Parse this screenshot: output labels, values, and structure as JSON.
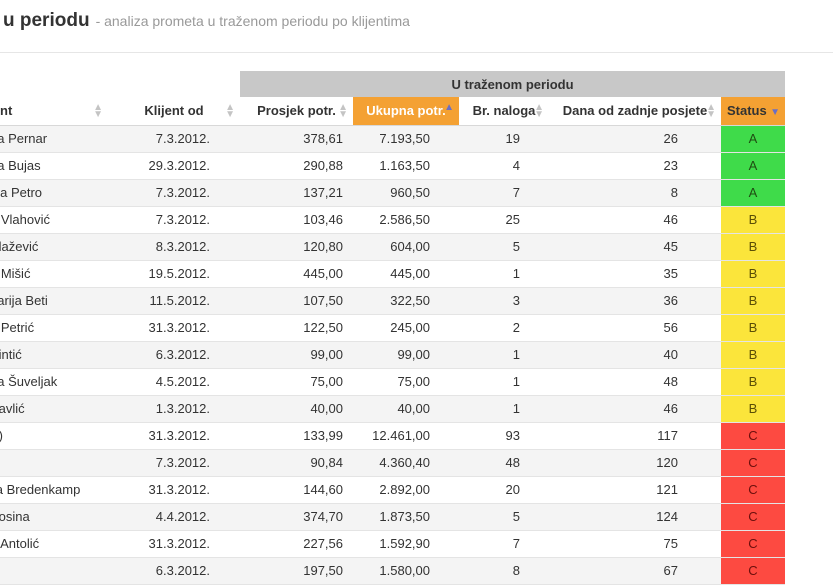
{
  "header": {
    "title": "u periodu",
    "subtitle": "- analiza prometa u traženom periodu po klijentima"
  },
  "table": {
    "group_header": "U traženom periodu",
    "columns": {
      "klijent": "nt",
      "klijent_od": "Klijent od",
      "prosjek": "Prosjek potr.",
      "ukupna": "Ukupna potr.",
      "nalozi": "Br. naloga",
      "dana": "Dana od zadnje posjete",
      "status": "Status"
    },
    "sorted_column": "ukupna",
    "rows": [
      {
        "name": "na Pernar",
        "since": "7.3.2012.",
        "avg": "378,61",
        "total": "7.193,50",
        "orders": "19",
        "days": "26",
        "status": "A"
      },
      {
        "name": "na Bujas",
        "since": "29.3.2012.",
        "avg": "290,88",
        "total": "1.163,50",
        "orders": "4",
        "days": "23",
        "status": "A"
      },
      {
        "name": "ina Petro",
        "since": "7.3.2012.",
        "avg": "137,21",
        "total": "960,50",
        "orders": "7",
        "days": "8",
        "status": "A"
      },
      {
        "name": "a Vlahović",
        "since": "7.3.2012.",
        "avg": "103,46",
        "total": "2.586,50",
        "orders": "25",
        "days": "46",
        "status": "B"
      },
      {
        "name": "Blažević",
        "since": "8.3.2012.",
        "avg": "120,80",
        "total": "604,00",
        "orders": "5",
        "days": "45",
        "status": "B"
      },
      {
        "name": "a Mišić",
        "since": "19.5.2012.",
        "avg": "445,00",
        "total": "445,00",
        "orders": "1",
        "days": "35",
        "status": "B"
      },
      {
        "name": "narija Beti",
        "since": "11.5.2012.",
        "avg": "107,50",
        "total": "322,50",
        "orders": "3",
        "days": "36",
        "status": "B"
      },
      {
        "name": "a Petrić",
        "since": "31.3.2012.",
        "avg": "122,50",
        "total": "245,00",
        "orders": "2",
        "days": "56",
        "status": "B"
      },
      {
        "name": "Pintić",
        "since": "6.3.2012.",
        "avg": "99,00",
        "total": "99,00",
        "orders": "1",
        "days": "40",
        "status": "B"
      },
      {
        "name": "ea Šuveljak",
        "since": "4.5.2012.",
        "avg": "75,00",
        "total": "75,00",
        "orders": "1",
        "days": "48",
        "status": "B"
      },
      {
        "name": "Pavlić",
        "since": "1.3.2012.",
        "avg": "40,00",
        "total": "40,00",
        "orders": "1",
        "days": "46",
        "status": "B"
      },
      {
        "name": "K)",
        "since": "31.3.2012.",
        "avg": "133,99",
        "total": "12.461,00",
        "orders": "93",
        "days": "117",
        "status": "C"
      },
      {
        "name": "",
        "since": "7.3.2012.",
        "avg": "90,84",
        "total": "4.360,40",
        "orders": "48",
        "days": "120",
        "status": "C"
      },
      {
        "name": "ija Bredenkamp",
        "since": "31.3.2012.",
        "avg": "144,60",
        "total": "2.892,00",
        "orders": "20",
        "days": "121",
        "status": "C"
      },
      {
        "name": "Kosina",
        "since": "4.4.2012.",
        "avg": "374,70",
        "total": "1.873,50",
        "orders": "5",
        "days": "124",
        "status": "C"
      },
      {
        "name": "a Antolić",
        "since": "31.3.2012.",
        "avg": "227,56",
        "total": "1.592,90",
        "orders": "7",
        "days": "75",
        "status": "C"
      },
      {
        "name": "",
        "since": "6.3.2012.",
        "avg": "197,50",
        "total": "1.580,00",
        "orders": "8",
        "days": "67",
        "status": "C"
      }
    ]
  },
  "colors": {
    "status_A": "#3fdb4a",
    "status_B": "#fbe53b",
    "status_C": "#fd4a41",
    "sorted_header": "#f4a133",
    "group_header": "#c8c8c8"
  }
}
